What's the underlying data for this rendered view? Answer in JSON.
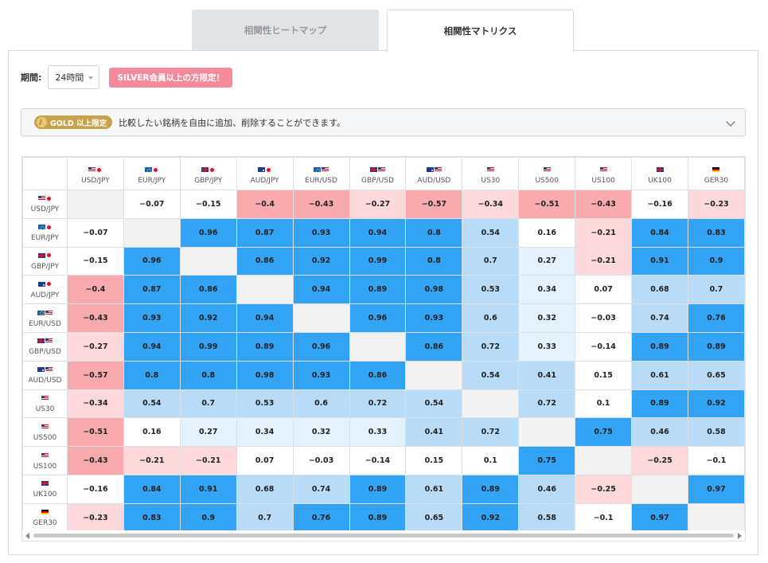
{
  "tabs": [
    {
      "label": "相関性ヒートマップ",
      "active": false
    },
    {
      "label": "相関性マトリクス",
      "active": true
    }
  ],
  "period": {
    "label": "期間:",
    "value": "24時間",
    "badge": "SILVER会員以上の方限定！"
  },
  "gold": {
    "badge": "GOLD 以上限定",
    "text": "比較したい銘柄を自由に追加、削除することができます。"
  },
  "colors": {
    "strong_positive": "#33a3f5",
    "positive": "#b8dcf8",
    "weak_positive": "#e3f2fd",
    "neutral": "#ffffff",
    "weak_negative": "#fdd9dc",
    "negative": "#f9aaaf",
    "diagonal": "#f2f2f2"
  },
  "symbols": [
    {
      "name": "USD/JPY",
      "flags": [
        "us",
        "jp"
      ]
    },
    {
      "name": "EUR/JPY",
      "flags": [
        "eu",
        "jp"
      ]
    },
    {
      "name": "GBP/JPY",
      "flags": [
        "gb",
        "jp"
      ]
    },
    {
      "name": "AUD/JPY",
      "flags": [
        "au",
        "jp"
      ]
    },
    {
      "name": "EUR/USD",
      "flags": [
        "eu",
        "us"
      ]
    },
    {
      "name": "GBP/USD",
      "flags": [
        "gb",
        "us"
      ]
    },
    {
      "name": "AUD/USD",
      "flags": [
        "au",
        "us"
      ]
    },
    {
      "name": "US30",
      "flags": [
        "us"
      ]
    },
    {
      "name": "US500",
      "flags": [
        "us"
      ]
    },
    {
      "name": "US100",
      "flags": [
        "us"
      ]
    },
    {
      "name": "UK100",
      "flags": [
        "gb"
      ]
    },
    {
      "name": "GER30",
      "flags": [
        "de"
      ]
    }
  ],
  "matrix": [
    [
      "",
      "-0.07",
      "-0.15",
      "-0.4",
      "-0.43",
      "-0.27",
      "-0.57",
      "-0.34",
      "-0.51",
      "-0.43",
      "-0.16",
      "-0.23"
    ],
    [
      "-0.07",
      "",
      "0.96",
      "0.87",
      "0.93",
      "0.94",
      "0.8",
      "0.54",
      "0.16",
      "-0.21",
      "0.84",
      "0.83"
    ],
    [
      "-0.15",
      "0.96",
      "",
      "0.86",
      "0.92",
      "0.99",
      "0.8",
      "0.7",
      "0.27",
      "-0.21",
      "0.91",
      "0.9"
    ],
    [
      "-0.4",
      "0.87",
      "0.86",
      "",
      "0.94",
      "0.89",
      "0.98",
      "0.53",
      "0.34",
      "0.07",
      "0.68",
      "0.7"
    ],
    [
      "-0.43",
      "0.93",
      "0.92",
      "0.94",
      "",
      "0.96",
      "0.93",
      "0.6",
      "0.32",
      "-0.03",
      "0.74",
      "0.76"
    ],
    [
      "-0.27",
      "0.94",
      "0.99",
      "0.89",
      "0.96",
      "",
      "0.86",
      "0.72",
      "0.33",
      "-0.14",
      "0.89",
      "0.89"
    ],
    [
      "-0.57",
      "0.8",
      "0.8",
      "0.98",
      "0.93",
      "0.86",
      "",
      "0.54",
      "0.41",
      "0.15",
      "0.61",
      "0.65"
    ],
    [
      "-0.34",
      "0.54",
      "0.7",
      "0.53",
      "0.6",
      "0.72",
      "0.54",
      "",
      "0.72",
      "0.1",
      "0.89",
      "0.92"
    ],
    [
      "-0.51",
      "0.16",
      "0.27",
      "0.34",
      "0.32",
      "0.33",
      "0.41",
      "0.72",
      "",
      "0.75",
      "0.46",
      "0.58"
    ],
    [
      "-0.43",
      "-0.21",
      "-0.21",
      "0.07",
      "-0.03",
      "-0.14",
      "0.15",
      "0.1",
      "0.75",
      "",
      "-0.25",
      "-0.1"
    ],
    [
      "-0.16",
      "0.84",
      "0.91",
      "0.68",
      "0.74",
      "0.89",
      "0.61",
      "0.89",
      "0.46",
      "-0.25",
      "",
      "0.97"
    ],
    [
      "-0.23",
      "0.83",
      "0.9",
      "0.7",
      "0.76",
      "0.89",
      "0.65",
      "0.92",
      "0.58",
      "-0.1",
      "0.97",
      ""
    ]
  ]
}
